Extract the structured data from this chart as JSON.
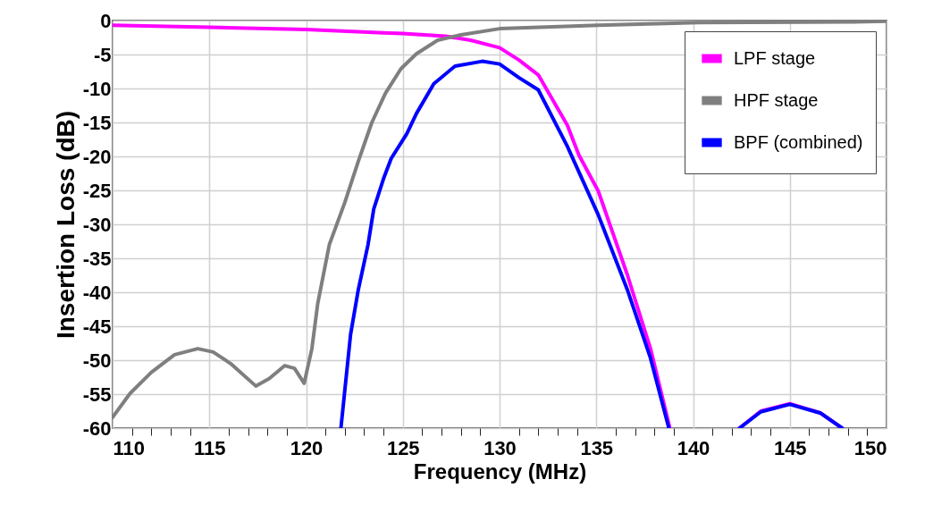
{
  "chart_data": {
    "type": "line",
    "xlabel": "Frequency (MHz)",
    "ylabel": "Insertion Loss (dB)",
    "xlim": [
      110,
      150
    ],
    "ylim": [
      -60,
      0
    ],
    "xticks": [
      110,
      {
        "value": 111,
        "label": null
      },
      {
        "value": 112,
        "label": null
      },
      {
        "value": 113,
        "label": null
      },
      {
        "value": 114,
        "label": null
      },
      115,
      {
        "value": 116,
        "label": null
      },
      {
        "value": 117,
        "label": null
      },
      {
        "value": 118,
        "label": null
      },
      {
        "value": 119,
        "label": null
      },
      120,
      {
        "value": 121,
        "label": null
      },
      {
        "value": 122,
        "label": null
      },
      {
        "value": 123,
        "label": null
      },
      {
        "value": 124,
        "label": null
      },
      125,
      {
        "value": 126,
        "label": null
      },
      {
        "value": 127,
        "label": null
      },
      {
        "value": 128,
        "label": null
      },
      {
        "value": 129,
        "label": null
      },
      130,
      {
        "value": 131,
        "label": null
      },
      {
        "value": 132,
        "label": null
      },
      {
        "value": 133,
        "label": null
      },
      {
        "value": 134,
        "label": null
      },
      135,
      {
        "value": 136,
        "label": null
      },
      {
        "value": 137,
        "label": null
      },
      {
        "value": 138,
        "label": null
      },
      {
        "value": 139,
        "label": null
      },
      140,
      {
        "value": 141,
        "label": null
      },
      {
        "value": 142,
        "label": null
      },
      {
        "value": 143,
        "label": null
      },
      {
        "value": 144,
        "label": null
      },
      145,
      {
        "value": 146,
        "label": null
      },
      {
        "value": 147,
        "label": null
      },
      {
        "value": 148,
        "label": null
      },
      {
        "value": 149,
        "label": null
      },
      150
    ],
    "yticks": [
      -60,
      -55,
      -50,
      -45,
      -40,
      -35,
      -30,
      -25,
      -20,
      -15,
      -10,
      -5,
      0
    ],
    "grid": true,
    "legend": "top right",
    "line_style": "solid",
    "marker": "none",
    "series": [
      {
        "name": "LPF stage",
        "color": "#ff00ff",
        "x": [
          110,
          115,
          120,
          124,
          125,
          127.2,
          128.5,
          130,
          131,
          132,
          133.5,
          134.1,
          135.1,
          136.6,
          137.8,
          138.8,
          140.6,
          142.4,
          143.5,
          145,
          146.6,
          147.7
        ],
        "values": [
          -0.7,
          -1.0,
          -1.3,
          -1.8,
          -1.9,
          -2.3,
          -2.9,
          -4,
          -5.8,
          -8.0,
          -15.4,
          -19.8,
          -25.1,
          -37.4,
          -48.3,
          -60,
          null,
          -60,
          -57.5,
          -56.4,
          -57.8,
          -60
        ]
      },
      {
        "name": "HPF stage",
        "color": "#7f7f7f",
        "x": [
          110,
          110.9,
          112,
          113.2,
          114.4,
          115.2,
          116.1,
          117.4,
          118.1,
          118.9,
          119.4,
          119.9,
          120.3,
          120.6,
          121.2,
          122,
          122.7,
          123.4,
          124.1,
          124.9,
          125.7,
          126.8,
          128,
          130,
          134.1,
          135.1,
          140.3,
          148.3,
          150
        ],
        "values": [
          -58.4,
          -54.9,
          -51.8,
          -49.2,
          -48.3,
          -48.8,
          -50.5,
          -53.8,
          -52.7,
          -50.8,
          -51.2,
          -53.4,
          -48.3,
          -41.7,
          -33.0,
          -26.8,
          -20.7,
          -15.0,
          -10.7,
          -7.1,
          -4.9,
          -2.9,
          -2.1,
          -1.2,
          -0.8,
          -0.7,
          -0.3,
          -0.2,
          -0.1
        ]
      },
      {
        "name": "BPF (combined)",
        "color": "#0000ff",
        "x": [
          121.8,
          122.3,
          122.7,
          123.2,
          123.5,
          124,
          124.4,
          125.2,
          125.7,
          126.6,
          127.7,
          129.1,
          130,
          131,
          132,
          133.5,
          135.1,
          136.6,
          137.8,
          138.75,
          140.6,
          142.4,
          143.5,
          145,
          146.6,
          147.7
        ],
        "values": [
          -60,
          -46.2,
          -39.6,
          -33.0,
          -27.7,
          -23.3,
          -20.3,
          -16.7,
          -13.7,
          -9.3,
          -6.7,
          -6.0,
          -6.4,
          -8.4,
          -10.2,
          -18.5,
          -28.6,
          -39.6,
          -49.7,
          -60,
          null,
          -60,
          -57.6,
          -56.5,
          -57.8,
          -60
        ]
      }
    ]
  }
}
